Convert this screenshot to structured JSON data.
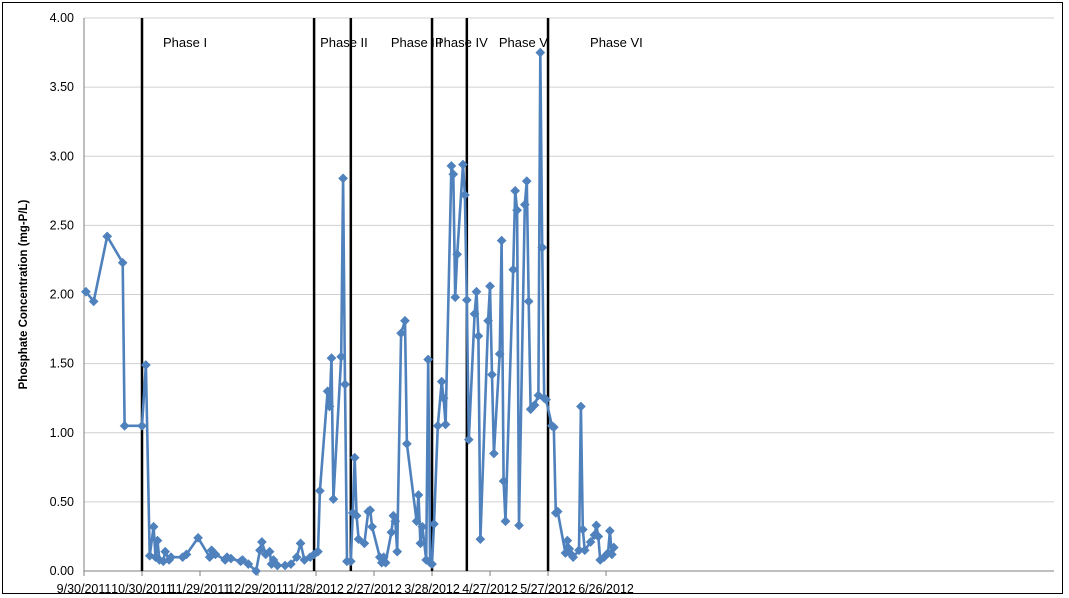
{
  "chart_data": {
    "type": "line",
    "title": "",
    "xlabel": "",
    "ylabel": "Phosphate Concentration (mg-P/L)",
    "x_axis": {
      "type": "date",
      "min": "2011-09-30",
      "max": "2012-07-16",
      "ticks": [
        {
          "date": "2011-09-30",
          "label": "9/30/2011"
        },
        {
          "date": "2011-10-30",
          "label": "10/30/2011"
        },
        {
          "date": "2011-11-29",
          "label": "11/29/2011"
        },
        {
          "date": "2011-12-29",
          "label": "12/29/2011"
        },
        {
          "date": "2012-01-28",
          "label": "1/28/2012"
        },
        {
          "date": "2012-02-27",
          "label": "2/27/2012"
        },
        {
          "date": "2012-03-28",
          "label": "3/28/2012"
        },
        {
          "date": "2012-04-27",
          "label": "4/27/2012"
        },
        {
          "date": "2012-05-27",
          "label": "5/27/2012"
        },
        {
          "date": "2012-06-26",
          "label": "6/26/2012"
        }
      ]
    },
    "y_axis": {
      "min": 0,
      "max": 4,
      "ticks": [
        {
          "value": 0,
          "label": "0.00"
        },
        {
          "value": 0.5,
          "label": "0.50"
        },
        {
          "value": 1,
          "label": "1.00"
        },
        {
          "value": 1.5,
          "label": "1.50"
        },
        {
          "value": 2,
          "label": "2.00"
        },
        {
          "value": 2.5,
          "label": "2.50"
        },
        {
          "value": 3,
          "label": "3.00"
        },
        {
          "value": 3.5,
          "label": "3.50"
        },
        {
          "value": 4,
          "label": "4.00"
        }
      ]
    },
    "grid": {
      "horizontal": true,
      "vertical": false
    },
    "legend": "none",
    "series": [
      {
        "color": "#4F81BD",
        "marker": "diamond",
        "points": [
          [
            "2011-10-01",
            2.02
          ],
          [
            "2011-10-05",
            1.95
          ],
          [
            "2011-10-12",
            2.42
          ],
          [
            "2011-10-20",
            2.23
          ],
          [
            "2011-10-21",
            1.05
          ],
          [
            "2011-10-30",
            1.05
          ],
          [
            "2011-11-01",
            1.49
          ],
          [
            "2011-11-03",
            0.11
          ],
          [
            "2011-11-05",
            0.32
          ],
          [
            "2011-11-06",
            0.1
          ],
          [
            "2011-11-07",
            0.22
          ],
          [
            "2011-11-08",
            0.08
          ],
          [
            "2011-11-10",
            0.07
          ],
          [
            "2011-11-11",
            0.14
          ],
          [
            "2011-11-13",
            0.08
          ],
          [
            "2011-11-14",
            0.1
          ],
          [
            "2011-11-20",
            0.1
          ],
          [
            "2011-11-22",
            0.12
          ],
          [
            "2011-11-28",
            0.24
          ],
          [
            "2011-12-04",
            0.1
          ],
          [
            "2011-12-05",
            0.15
          ],
          [
            "2011-12-07",
            0.12
          ],
          [
            "2011-12-12",
            0.08
          ],
          [
            "2011-12-13",
            0.1
          ],
          [
            "2011-12-15",
            0.09
          ],
          [
            "2011-12-20",
            0.07
          ],
          [
            "2011-12-21",
            0.08
          ],
          [
            "2011-12-24",
            0.05
          ],
          [
            "2011-12-28",
            0.0
          ],
          [
            "2011-12-30",
            0.15
          ],
          [
            "2011-12-31",
            0.21
          ],
          [
            "2012-01-02",
            0.12
          ],
          [
            "2012-01-04",
            0.14
          ],
          [
            "2012-01-05",
            0.05
          ],
          [
            "2012-01-06",
            0.08
          ],
          [
            "2012-01-08",
            0.04
          ],
          [
            "2012-01-12",
            0.04
          ],
          [
            "2012-01-15",
            0.05
          ],
          [
            "2012-01-18",
            0.1
          ],
          [
            "2012-01-20",
            0.2
          ],
          [
            "2012-01-22",
            0.08
          ],
          [
            "2012-01-25",
            0.1
          ],
          [
            "2012-01-27",
            0.12
          ],
          [
            "2012-01-29",
            0.14
          ],
          [
            "2012-01-30",
            0.58
          ],
          [
            "2012-02-03",
            1.3
          ],
          [
            "2012-02-04",
            1.19
          ],
          [
            "2012-02-05",
            1.54
          ],
          [
            "2012-02-06",
            0.52
          ],
          [
            "2012-02-10",
            1.55
          ],
          [
            "2012-02-11",
            2.84
          ],
          [
            "2012-02-12",
            1.35
          ],
          [
            "2012-02-13",
            0.07
          ],
          [
            "2012-02-15",
            0.07
          ],
          [
            "2012-02-16",
            0.42
          ],
          [
            "2012-02-17",
            0.82
          ],
          [
            "2012-02-18",
            0.4
          ],
          [
            "2012-02-19",
            0.23
          ],
          [
            "2012-02-22",
            0.2
          ],
          [
            "2012-02-24",
            0.43
          ],
          [
            "2012-02-25",
            0.44
          ],
          [
            "2012-02-26",
            0.32
          ],
          [
            "2012-03-01",
            0.1
          ],
          [
            "2012-03-02",
            0.06
          ],
          [
            "2012-03-03",
            0.1
          ],
          [
            "2012-03-04",
            0.06
          ],
          [
            "2012-03-07",
            0.28
          ],
          [
            "2012-03-08",
            0.4
          ],
          [
            "2012-03-09",
            0.36
          ],
          [
            "2012-03-10",
            0.14
          ],
          [
            "2012-03-12",
            1.72
          ],
          [
            "2012-03-14",
            1.81
          ],
          [
            "2012-03-15",
            0.92
          ],
          [
            "2012-03-20",
            0.36
          ],
          [
            "2012-03-21",
            0.55
          ],
          [
            "2012-03-22",
            0.2
          ],
          [
            "2012-03-23",
            0.32
          ],
          [
            "2012-03-25",
            0.08
          ],
          [
            "2012-03-26",
            1.53
          ],
          [
            "2012-03-27",
            0.06
          ],
          [
            "2012-03-28",
            0.05
          ],
          [
            "2012-03-29",
            0.34
          ],
          [
            "2012-03-31",
            1.05
          ],
          [
            "2012-04-02",
            1.37
          ],
          [
            "2012-04-03",
            1.25
          ],
          [
            "2012-04-04",
            1.06
          ],
          [
            "2012-04-07",
            2.93
          ],
          [
            "2012-04-08",
            2.87
          ],
          [
            "2012-04-09",
            1.98
          ],
          [
            "2012-04-10",
            2.29
          ],
          [
            "2012-04-13",
            2.94
          ],
          [
            "2012-04-14",
            2.72
          ],
          [
            "2012-04-15",
            1.96
          ],
          [
            "2012-04-16",
            0.95
          ],
          [
            "2012-04-19",
            1.86
          ],
          [
            "2012-04-20",
            2.02
          ],
          [
            "2012-04-21",
            1.7
          ],
          [
            "2012-04-22",
            0.23
          ],
          [
            "2012-04-26",
            1.81
          ],
          [
            "2012-04-27",
            2.06
          ],
          [
            "2012-04-28",
            1.42
          ],
          [
            "2012-04-29",
            0.85
          ],
          [
            "2012-05-02",
            1.57
          ],
          [
            "2012-05-03",
            2.39
          ],
          [
            "2012-05-04",
            0.65
          ],
          [
            "2012-05-05",
            0.36
          ],
          [
            "2012-05-09",
            2.18
          ],
          [
            "2012-05-10",
            2.75
          ],
          [
            "2012-05-11",
            2.61
          ],
          [
            "2012-05-12",
            0.33
          ],
          [
            "2012-05-15",
            2.65
          ],
          [
            "2012-05-16",
            2.82
          ],
          [
            "2012-05-17",
            1.95
          ],
          [
            "2012-05-18",
            1.17
          ],
          [
            "2012-05-20",
            1.2
          ],
          [
            "2012-05-22",
            1.27
          ],
          [
            "2012-05-23",
            3.75
          ],
          [
            "2012-05-24",
            2.34
          ],
          [
            "2012-05-25",
            1.25
          ],
          [
            "2012-05-26",
            1.24
          ],
          [
            "2012-05-29",
            1.05
          ],
          [
            "2012-05-30",
            1.04
          ],
          [
            "2012-05-31",
            0.42
          ],
          [
            "2012-06-01",
            0.43
          ],
          [
            "2012-06-05",
            0.13
          ],
          [
            "2012-06-06",
            0.22
          ],
          [
            "2012-06-07",
            0.16
          ],
          [
            "2012-06-08",
            0.12
          ],
          [
            "2012-06-09",
            0.1
          ],
          [
            "2012-06-12",
            0.15
          ],
          [
            "2012-06-13",
            1.19
          ],
          [
            "2012-06-14",
            0.3
          ],
          [
            "2012-06-15",
            0.15
          ],
          [
            "2012-06-18",
            0.21
          ],
          [
            "2012-06-20",
            0.26
          ],
          [
            "2012-06-21",
            0.33
          ],
          [
            "2012-06-22",
            0.25
          ],
          [
            "2012-06-23",
            0.08
          ],
          [
            "2012-06-25",
            0.1
          ],
          [
            "2012-06-27",
            0.13
          ],
          [
            "2012-06-28",
            0.29
          ],
          [
            "2012-06-29",
            0.12
          ],
          [
            "2012-06-30",
            0.17
          ]
        ]
      }
    ],
    "phases": [
      {
        "label": "Phase I",
        "start": "2011-10-30"
      },
      {
        "label": "Phase II",
        "start": "2012-01-27"
      },
      {
        "label": "Phase III",
        "start": "2012-02-15"
      },
      {
        "label": "Phase IV",
        "start": "2012-03-28"
      },
      {
        "label": "Phase V",
        "start": "2012-04-15"
      },
      {
        "label": "Phase VI",
        "start": "2012-05-27"
      }
    ]
  }
}
